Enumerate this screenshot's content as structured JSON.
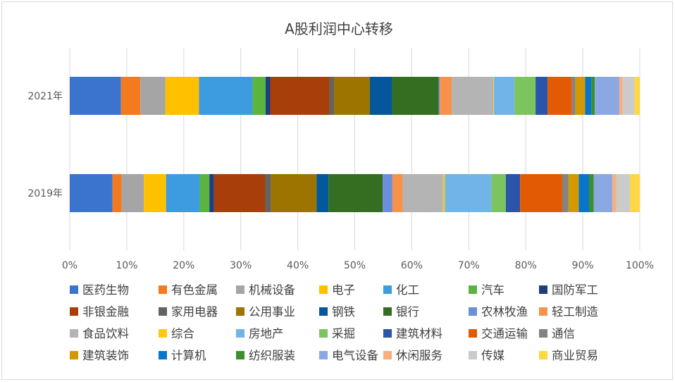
{
  "chart_data": {
    "type": "bar",
    "orientation": "horizontal",
    "stacked": "percent",
    "title": "A股利润中心转移",
    "categories": [
      "2021年",
      "2019年"
    ],
    "xlim": [
      0,
      100
    ],
    "xticks": [
      "0%",
      "10%",
      "20%",
      "30%",
      "40%",
      "50%",
      "60%",
      "70%",
      "80%",
      "90%",
      "100%"
    ],
    "grid": "vertical",
    "legend_position": "bottom",
    "series": [
      {
        "name": "医药生物",
        "color": "#3A74CF",
        "values": [
          9.0,
          7.5
        ]
      },
      {
        "name": "有色金属",
        "color": "#F47A1F",
        "values": [
          3.4,
          1.6
        ]
      },
      {
        "name": "机械设备",
        "color": "#A5A5A5",
        "values": [
          4.4,
          3.9
        ]
      },
      {
        "name": "电子",
        "color": "#FFC000",
        "values": [
          5.9,
          3.9
        ]
      },
      {
        "name": "化工",
        "color": "#3D9BE0",
        "values": [
          9.4,
          5.9
        ]
      },
      {
        "name": "汽车",
        "color": "#5BB440",
        "values": [
          2.3,
          1.7
        ]
      },
      {
        "name": "国防军工",
        "color": "#1E3E7F",
        "values": [
          0.8,
          0.8
        ]
      },
      {
        "name": "非银金融",
        "color": "#A83F0A",
        "values": [
          10.4,
          9.0
        ]
      },
      {
        "name": "家用电器",
        "color": "#636363",
        "values": [
          0.8,
          1.0
        ]
      },
      {
        "name": "公用事业",
        "color": "#9E7400",
        "values": [
          6.3,
          8.0
        ]
      },
      {
        "name": "钢铁",
        "color": "#03579A",
        "values": [
          3.9,
          2.1
        ]
      },
      {
        "name": "银行",
        "color": "#336E21",
        "values": [
          8.2,
          9.5
        ]
      },
      {
        "name": "农林牧渔",
        "color": "#6B8FDA",
        "values": [
          0.2,
          1.7
        ]
      },
      {
        "name": "轻工制造",
        "color": "#F8924B",
        "values": [
          2.1,
          1.8
        ]
      },
      {
        "name": "食品饮料",
        "color": "#B4B4B4",
        "values": [
          7.3,
          7.1
        ]
      },
      {
        "name": "综合",
        "color": "#FFCA0D",
        "values": [
          0.1,
          0.3
        ]
      },
      {
        "name": "房地产",
        "color": "#70B4E8",
        "values": [
          3.6,
          8.2
        ]
      },
      {
        "name": "采掘",
        "color": "#7CC45E",
        "values": [
          3.7,
          2.5
        ]
      },
      {
        "name": "建筑材料",
        "color": "#2A55A8",
        "values": [
          2.1,
          2.5
        ]
      },
      {
        "name": "交通运输",
        "color": "#E35A05",
        "values": [
          4.3,
          7.4
        ]
      },
      {
        "name": "通信",
        "color": "#838383",
        "values": [
          0.6,
          1.1
        ]
      },
      {
        "name": "建筑装饰",
        "color": "#D29A00",
        "values": [
          1.7,
          1.8
        ]
      },
      {
        "name": "计算机",
        "color": "#0775CC",
        "values": [
          1.1,
          1.8
        ]
      },
      {
        "name": "纺织服装",
        "color": "#3F8E2C",
        "values": [
          0.6,
          0.8
        ]
      },
      {
        "name": "电气设备",
        "color": "#8AA8E1",
        "values": [
          4.3,
          3.3
        ]
      },
      {
        "name": "休闲服务",
        "color": "#F9AE7E",
        "values": [
          0.6,
          0.7
        ]
      },
      {
        "name": "传媒",
        "color": "#CBCBCB",
        "values": [
          2.1,
          2.4
        ]
      },
      {
        "name": "商业贸易",
        "color": "#FFD743",
        "values": [
          0.9,
          1.7
        ]
      }
    ]
  }
}
